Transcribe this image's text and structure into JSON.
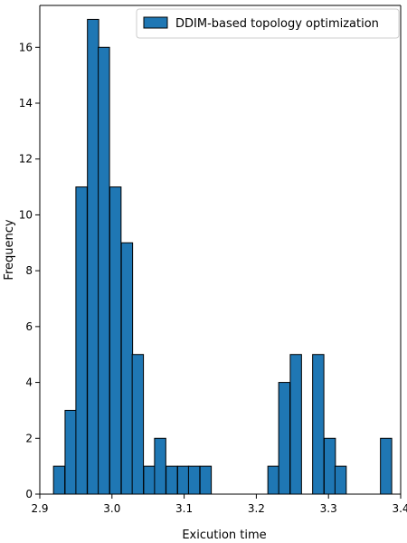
{
  "chart_data": {
    "type": "bar",
    "title": "",
    "xlabel": "Exicution time",
    "ylabel": "Frequency",
    "xlim": [
      2.9,
      3.4
    ],
    "ylim": [
      0,
      17.5
    ],
    "xticks": [
      "2.9",
      "3.0",
      "3.1",
      "3.2",
      "3.3",
      "3.4"
    ],
    "yticks": [
      "0",
      "2",
      "4",
      "6",
      "8",
      "10",
      "12",
      "14",
      "16"
    ],
    "grid": false,
    "legend_position": "top-right",
    "bin_width": 0.0156,
    "series": [
      {
        "name": "DDIM-based topology optimization",
        "color": "#1f77b4",
        "edge_color": "#000000",
        "bins": [
          {
            "x0": 2.919,
            "count": 1
          },
          {
            "x0": 2.935,
            "count": 3
          },
          {
            "x0": 2.95,
            "count": 11
          },
          {
            "x0": 2.966,
            "count": 17
          },
          {
            "x0": 2.981,
            "count": 16
          },
          {
            "x0": 2.997,
            "count": 11
          },
          {
            "x0": 3.013,
            "count": 9
          },
          {
            "x0": 3.028,
            "count": 5
          },
          {
            "x0": 3.044,
            "count": 1
          },
          {
            "x0": 3.059,
            "count": 2
          },
          {
            "x0": 3.075,
            "count": 1
          },
          {
            "x0": 3.091,
            "count": 1
          },
          {
            "x0": 3.106,
            "count": 1
          },
          {
            "x0": 3.122,
            "count": 1
          },
          {
            "x0": 3.216,
            "count": 1
          },
          {
            "x0": 3.231,
            "count": 4
          },
          {
            "x0": 3.247,
            "count": 5
          },
          {
            "x0": 3.278,
            "count": 5
          },
          {
            "x0": 3.294,
            "count": 2
          },
          {
            "x0": 3.309,
            "count": 1
          },
          {
            "x0": 3.372,
            "count": 2
          }
        ]
      }
    ]
  }
}
